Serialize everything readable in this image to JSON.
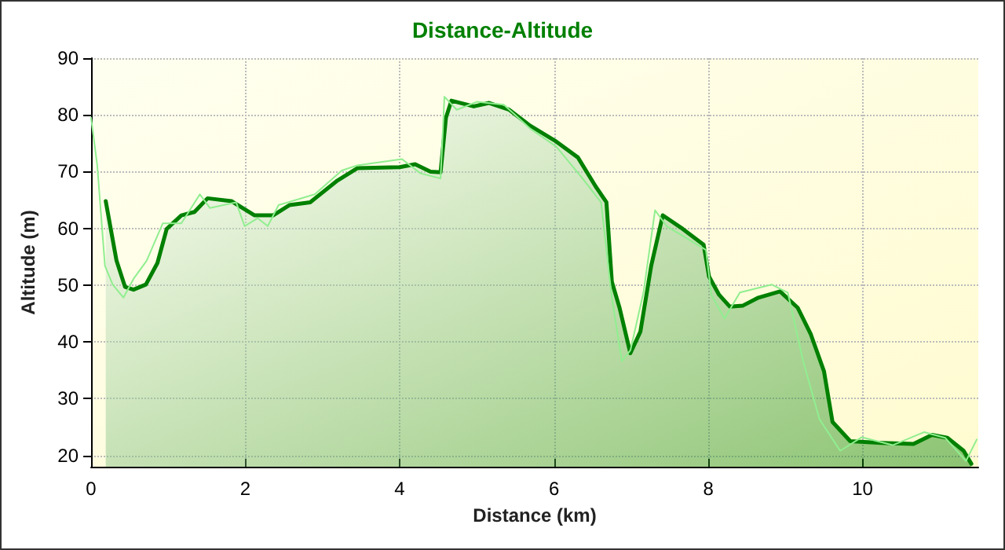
{
  "chart_data": {
    "type": "line",
    "title": "Distance-Altitude",
    "xlabel": "Distance (km)",
    "ylabel": "Altitude (m)",
    "xlim": [
      0,
      11.5
    ],
    "xticks": [
      0,
      2,
      4,
      6,
      8,
      10
    ],
    "ylim": [
      18,
      90
    ],
    "yticks": [
      20,
      30,
      40,
      50,
      60,
      70,
      80,
      90
    ],
    "grid": true,
    "marker": "none",
    "line_style": "solid",
    "series": [
      {
        "type": "area",
        "color": "#008000",
        "x": [
          0.19,
          0.33,
          0.44,
          0.55,
          0.71,
          0.86,
          0.98,
          1.17,
          1.34,
          1.51,
          1.82,
          2.12,
          2.36,
          2.57,
          2.84,
          3.18,
          3.45,
          4.0,
          4.2,
          4.4,
          4.53,
          4.6,
          4.67,
          4.96,
          5.16,
          5.42,
          5.69,
          6.03,
          6.31,
          6.54,
          6.68,
          6.75,
          6.85,
          6.99,
          7.12,
          7.26,
          7.41,
          7.67,
          7.94,
          8.01,
          8.14,
          8.28,
          8.45,
          8.65,
          8.93,
          9.16,
          9.33,
          9.5,
          9.61,
          9.84,
          10.25,
          10.66,
          10.9,
          11.1,
          11.31,
          11.41
        ],
        "values": [
          64.8,
          54.3,
          49.7,
          49.2,
          50.1,
          53.9,
          59.9,
          62.3,
          62.9,
          65.3,
          64.8,
          62.3,
          62.3,
          64.1,
          64.6,
          68.3,
          70.6,
          70.8,
          71.3,
          70.0,
          69.9,
          79.5,
          82.5,
          81.5,
          82.1,
          80.9,
          78.1,
          75.3,
          72.5,
          67.4,
          64.6,
          50.6,
          46.0,
          38.0,
          41.8,
          53.4,
          62.3,
          59.9,
          57.1,
          51.5,
          48.3,
          46.2,
          46.4,
          47.8,
          48.9,
          46.0,
          41.3,
          34.8,
          25.9,
          22.5,
          22.2,
          22.0,
          23.6,
          23.1,
          20.8,
          18.5
        ]
      },
      {
        "color": "#90ee90",
        "x": [
          0,
          0.08,
          0.18,
          0.28,
          0.42,
          0.55,
          0.72,
          0.93,
          1.17,
          1.41,
          1.54,
          1.88,
          1.99,
          2.16,
          2.29,
          2.43,
          2.9,
          3.25,
          3.45,
          4.03,
          4.27,
          4.53,
          4.58,
          4.74,
          5.0,
          5.35,
          5.69,
          6.03,
          6.37,
          6.61,
          6.75,
          6.88,
          6.99,
          7.16,
          7.31,
          7.46,
          7.97,
          8.04,
          8.21,
          8.41,
          8.82,
          9.03,
          9.23,
          9.44,
          9.71,
          9.99,
          10.39,
          10.8,
          11.07,
          11.34,
          11.48
        ],
        "values": [
          79.5,
          71.1,
          53.4,
          50.1,
          47.8,
          51.1,
          54.3,
          60.9,
          60.9,
          66.0,
          63.6,
          64.6,
          60.4,
          61.8,
          60.4,
          64.1,
          66.0,
          70.2,
          71.1,
          72.2,
          69.7,
          68.8,
          83.2,
          80.9,
          82.3,
          81.8,
          77.6,
          74.4,
          68.8,
          64.6,
          47.8,
          36.6,
          38.5,
          48.7,
          63.2,
          60.4,
          56.2,
          48.3,
          44.1,
          48.7,
          50.1,
          48.7,
          36.6,
          26.4,
          20.8,
          23.2,
          21.8,
          24.1,
          23.1,
          19.0,
          22.8
        ]
      }
    ]
  }
}
